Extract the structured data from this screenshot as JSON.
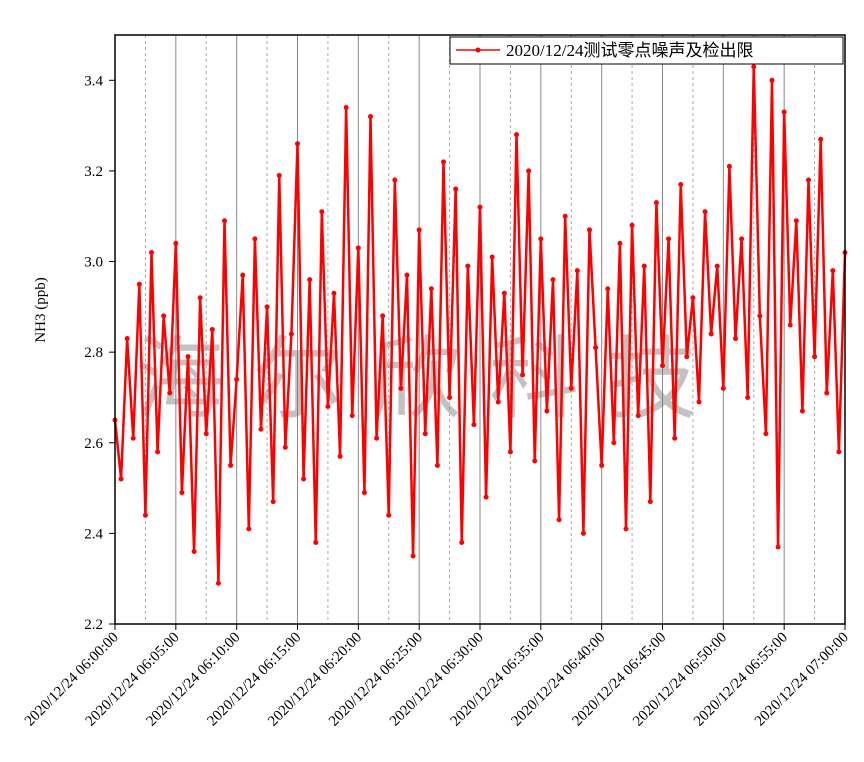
{
  "chart_data": {
    "type": "line",
    "ylabel": "NH3 (ppb)",
    "watermark": "海尔欣科技",
    "legend": "top-right",
    "grid": true,
    "x": [
      "2020/12/24 06:00:00",
      "2020/12/24 06:00:30",
      "2020/12/24 06:01:00",
      "2020/12/24 06:01:30",
      "2020/12/24 06:02:00",
      "2020/12/24 06:02:30",
      "2020/12/24 06:03:00",
      "2020/12/24 06:03:30",
      "2020/12/24 06:04:00",
      "2020/12/24 06:04:30",
      "2020/12/24 06:05:00",
      "2020/12/24 06:05:30",
      "2020/12/24 06:06:00",
      "2020/12/24 06:06:30",
      "2020/12/24 06:07:00",
      "2020/12/24 06:07:30",
      "2020/12/24 06:08:00",
      "2020/12/24 06:08:30",
      "2020/12/24 06:09:00",
      "2020/12/24 06:09:30",
      "2020/12/24 06:10:00",
      "2020/12/24 06:10:30",
      "2020/12/24 06:11:00",
      "2020/12/24 06:11:30",
      "2020/12/24 06:12:00",
      "2020/12/24 06:12:30",
      "2020/12/24 06:13:00",
      "2020/12/24 06:13:30",
      "2020/12/24 06:14:00",
      "2020/12/24 06:14:30",
      "2020/12/24 06:15:00",
      "2020/12/24 06:15:30",
      "2020/12/24 06:16:00",
      "2020/12/24 06:16:30",
      "2020/12/24 06:17:00",
      "2020/12/24 06:17:30",
      "2020/12/24 06:18:00",
      "2020/12/24 06:18:30",
      "2020/12/24 06:19:00",
      "2020/12/24 06:19:30",
      "2020/12/24 06:20:00",
      "2020/12/24 06:20:30",
      "2020/12/24 06:21:00",
      "2020/12/24 06:21:30",
      "2020/12/24 06:22:00",
      "2020/12/24 06:22:30",
      "2020/12/24 06:23:00",
      "2020/12/24 06:23:30",
      "2020/12/24 06:24:00",
      "2020/12/24 06:24:30",
      "2020/12/24 06:25:00",
      "2020/12/24 06:25:30",
      "2020/12/24 06:26:00",
      "2020/12/24 06:26:30",
      "2020/12/24 06:27:00",
      "2020/12/24 06:27:30",
      "2020/12/24 06:28:00",
      "2020/12/24 06:28:30",
      "2020/12/24 06:29:00",
      "2020/12/24 06:29:30",
      "2020/12/24 06:30:00",
      "2020/12/24 06:30:30",
      "2020/12/24 06:31:00",
      "2020/12/24 06:31:30",
      "2020/12/24 06:32:00",
      "2020/12/24 06:32:30",
      "2020/12/24 06:33:00",
      "2020/12/24 06:33:30",
      "2020/12/24 06:34:00",
      "2020/12/24 06:34:30",
      "2020/12/24 06:35:00",
      "2020/12/24 06:35:30",
      "2020/12/24 06:36:00",
      "2020/12/24 06:36:30",
      "2020/12/24 06:37:00",
      "2020/12/24 06:37:30",
      "2020/12/24 06:38:00",
      "2020/12/24 06:38:30",
      "2020/12/24 06:39:00",
      "2020/12/24 06:39:30",
      "2020/12/24 06:40:00",
      "2020/12/24 06:40:30",
      "2020/12/24 06:41:00",
      "2020/12/24 06:41:30",
      "2020/12/24 06:42:00",
      "2020/12/24 06:42:30",
      "2020/12/24 06:43:00",
      "2020/12/24 06:43:30",
      "2020/12/24 06:44:00",
      "2020/12/24 06:44:30",
      "2020/12/24 06:45:00",
      "2020/12/24 06:45:30",
      "2020/12/24 06:46:00",
      "2020/12/24 06:46:30",
      "2020/12/24 06:47:00",
      "2020/12/24 06:47:30",
      "2020/12/24 06:48:00",
      "2020/12/24 06:48:30",
      "2020/12/24 06:49:00",
      "2020/12/24 06:49:30",
      "2020/12/24 06:50:00",
      "2020/12/24 06:50:30",
      "2020/12/24 06:51:00",
      "2020/12/24 06:51:30",
      "2020/12/24 06:52:00",
      "2020/12/24 06:52:30",
      "2020/12/24 06:53:00",
      "2020/12/24 06:53:30",
      "2020/12/24 06:54:00",
      "2020/12/24 06:54:30",
      "2020/12/24 06:55:00",
      "2020/12/24 06:55:30",
      "2020/12/24 06:56:00",
      "2020/12/24 06:56:30",
      "2020/12/24 06:57:00",
      "2020/12/24 06:57:30",
      "2020/12/24 06:58:00",
      "2020/12/24 06:58:30",
      "2020/12/24 06:59:00",
      "2020/12/24 06:59:30",
      "2020/12/24 07:00:00"
    ],
    "series": [
      {
        "name": "2020/12/24测试零点噪声及检出限",
        "color": "#ff0000",
        "values": [
          2.65,
          2.52,
          2.83,
          2.61,
          2.95,
          2.44,
          3.02,
          2.58,
          2.88,
          2.71,
          3.04,
          2.49,
          2.79,
          2.36,
          2.92,
          2.62,
          2.85,
          2.29,
          3.09,
          2.55,
          2.74,
          2.97,
          2.41,
          3.05,
          2.63,
          2.9,
          2.47,
          3.19,
          2.59,
          2.84,
          3.26,
          2.52,
          2.96,
          2.38,
          3.11,
          2.68,
          2.93,
          2.57,
          3.34,
          2.66,
          3.03,
          2.49,
          3.32,
          2.61,
          2.88,
          2.44,
          3.18,
          2.72,
          2.97,
          2.35,
          3.07,
          2.62,
          2.94,
          2.55,
          3.22,
          2.7,
          3.16,
          2.38,
          2.99,
          2.64,
          3.12,
          2.48,
          3.01,
          2.69,
          2.93,
          2.58,
          3.28,
          2.75,
          3.2,
          2.56,
          3.05,
          2.67,
          2.96,
          2.43,
          3.1,
          2.72,
          2.98,
          2.4,
          3.07,
          2.81,
          2.55,
          2.94,
          2.6,
          3.04,
          2.41,
          3.08,
          2.66,
          2.99,
          2.47,
          3.13,
          2.77,
          3.05,
          2.61,
          3.17,
          2.79,
          2.92,
          2.69,
          3.11,
          2.84,
          2.99,
          2.72,
          3.21,
          2.83,
          3.05,
          2.7,
          3.43,
          2.88,
          2.62,
          3.4,
          2.37,
          3.33,
          2.86,
          3.09,
          2.67,
          3.18,
          2.79,
          3.27,
          2.71,
          2.98,
          2.58,
          3.02
        ]
      }
    ],
    "xlim": [
      "2020/12/24 06:00:00",
      "2020/12/24 07:00:00"
    ],
    "xticks": [
      "2020/12/24 06:00:00",
      "2020/12/24 06:05:00",
      "2020/12/24 06:10:00",
      "2020/12/24 06:15:00",
      "2020/12/24 06:20:00",
      "2020/12/24 06:25:00",
      "2020/12/24 06:30:00",
      "2020/12/24 06:35:00",
      "2020/12/24 06:40:00",
      "2020/12/24 06:45:00",
      "2020/12/24 06:50:00",
      "2020/12/24 06:55:00",
      "2020/12/24 07:00:00"
    ],
    "ylim": [
      2.2,
      3.5
    ],
    "yticks": [
      2.2,
      2.4,
      2.6,
      2.8,
      {
        "value": 3,
        "label": "3.0"
      },
      3.2,
      3.4
    ]
  }
}
